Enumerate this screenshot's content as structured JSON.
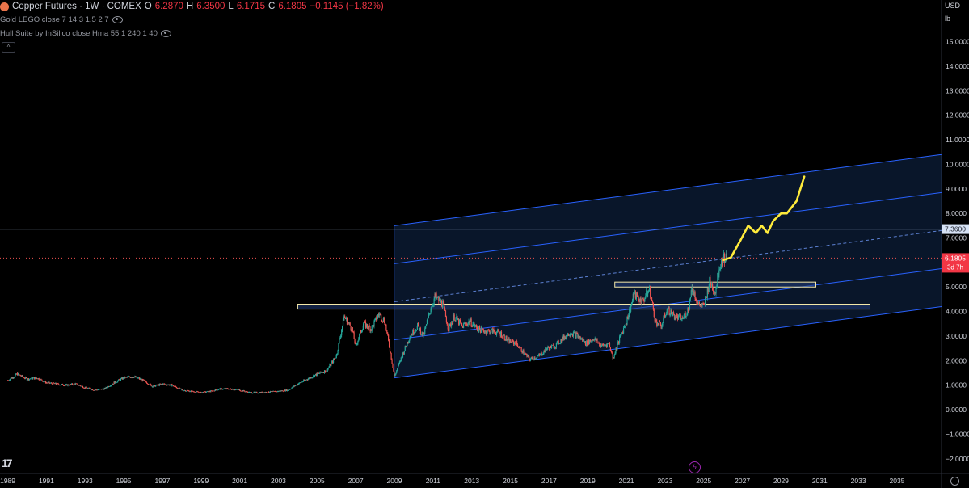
{
  "header": {
    "symbol": "Copper Futures · 1W · COMEX",
    "open_label": "O",
    "open": "6.2870",
    "high_label": "H",
    "high": "6.3500",
    "low_label": "L",
    "low": "6.1715",
    "close_label": "C",
    "close": "6.1805",
    "change": "−0.1145 (−1.82%)",
    "indicator1": "Gold LEGO close 7 14 3 1.5 2 7",
    "indicator2": "Hull Suite by InSilico close Hma 55 1 240 1 40"
  },
  "price_axis": {
    "currency": "USD",
    "unit": "lb"
  },
  "labels": {
    "h_line_price": "7.3600",
    "last_price": "6.1805",
    "countdown": "3d 7h"
  },
  "colors": {
    "background": "#000000",
    "up": "#26a69a",
    "down": "#ef5350",
    "channel": "#2962ff",
    "projection": "#ffeb3b",
    "zone": "#ffeb3b"
  },
  "icons": [
    "exchange-logo-icon",
    "eye-icon",
    "tradingview-logo-icon",
    "flash-icon",
    "settings-icon"
  ],
  "chart_data": {
    "type": "candlestick",
    "title": "Copper Futures · 1W · COMEX",
    "ylim": [
      -2.6,
      16.7
    ],
    "xlim": [
      1988.6,
      2037.3
    ],
    "y_ticks": [
      15,
      14,
      13,
      12,
      11,
      10,
      9,
      8,
      7,
      6,
      5,
      4,
      3,
      2,
      1,
      0,
      -1,
      -2
    ],
    "y_tick_labels": [
      "15.0000",
      "14.0000",
      "13.0000",
      "12.0000",
      "11.0000",
      "10.0000",
      "9.0000",
      "8.0000",
      "7.0000",
      "6.0000",
      "5.0000",
      "4.0000",
      "3.0000",
      "2.0000",
      "1.0000",
      "0.0000",
      "−1.0000",
      "−2.0000"
    ],
    "x_ticks": [
      1989,
      1991,
      1993,
      1995,
      1997,
      1999,
      2001,
      2003,
      2005,
      2007,
      2009,
      2011,
      2013,
      2015,
      2017,
      2019,
      2021,
      2023,
      2025,
      2027,
      2029,
      2031,
      2033,
      2035
    ],
    "x_tick_labels": [
      "1989",
      "1991",
      "1993",
      "1995",
      "1997",
      "1999",
      "2001",
      "2003",
      "2005",
      "2007",
      "2009",
      "2011",
      "2013",
      "2015",
      "2017",
      "2019",
      "2021",
      "2023",
      "2025",
      "2027",
      "2029",
      "2031",
      "2033",
      "2035"
    ],
    "price_path": [
      [
        1989.0,
        1.2
      ],
      [
        1989.5,
        1.45
      ],
      [
        1990.0,
        1.25
      ],
      [
        1990.5,
        1.3
      ],
      [
        1991.0,
        1.1
      ],
      [
        1991.5,
        1.05
      ],
      [
        1992.0,
        1.0
      ],
      [
        1992.5,
        1.05
      ],
      [
        1993.0,
        0.9
      ],
      [
        1993.5,
        0.8
      ],
      [
        1994.0,
        0.85
      ],
      [
        1994.5,
        1.1
      ],
      [
        1995.0,
        1.3
      ],
      [
        1995.5,
        1.35
      ],
      [
        1996.0,
        1.2
      ],
      [
        1996.5,
        0.95
      ],
      [
        1997.0,
        1.05
      ],
      [
        1997.5,
        1.0
      ],
      [
        1998.0,
        0.8
      ],
      [
        1998.5,
        0.75
      ],
      [
        1999.0,
        0.7
      ],
      [
        1999.5,
        0.75
      ],
      [
        2000.0,
        0.85
      ],
      [
        2000.5,
        0.85
      ],
      [
        2001.0,
        0.8
      ],
      [
        2001.5,
        0.7
      ],
      [
        2002.0,
        0.7
      ],
      [
        2002.5,
        0.72
      ],
      [
        2003.0,
        0.75
      ],
      [
        2003.5,
        0.8
      ],
      [
        2004.0,
        1.05
      ],
      [
        2004.5,
        1.25
      ],
      [
        2005.0,
        1.45
      ],
      [
        2005.5,
        1.6
      ],
      [
        2006.0,
        2.2
      ],
      [
        2006.4,
        3.8
      ],
      [
        2006.8,
        3.3
      ],
      [
        2007.0,
        2.6
      ],
      [
        2007.4,
        3.5
      ],
      [
        2007.8,
        3.3
      ],
      [
        2008.2,
        3.9
      ],
      [
        2008.5,
        3.6
      ],
      [
        2008.8,
        2.3
      ],
      [
        2009.0,
        1.35
      ],
      [
        2009.4,
        2.2
      ],
      [
        2009.8,
        3.0
      ],
      [
        2010.2,
        3.4
      ],
      [
        2010.5,
        3.0
      ],
      [
        2010.9,
        4.2
      ],
      [
        2011.1,
        4.6
      ],
      [
        2011.5,
        4.3
      ],
      [
        2011.8,
        3.3
      ],
      [
        2012.1,
        3.8
      ],
      [
        2012.5,
        3.4
      ],
      [
        2012.9,
        3.6
      ],
      [
        2013.3,
        3.3
      ],
      [
        2013.7,
        3.2
      ],
      [
        2014.1,
        3.2
      ],
      [
        2014.5,
        3.1
      ],
      [
        2014.9,
        2.8
      ],
      [
        2015.3,
        2.7
      ],
      [
        2015.7,
        2.3
      ],
      [
        2016.0,
        2.05
      ],
      [
        2016.5,
        2.2
      ],
      [
        2016.9,
        2.5
      ],
      [
        2017.3,
        2.6
      ],
      [
        2017.7,
        2.9
      ],
      [
        2018.1,
        3.15
      ],
      [
        2018.5,
        3.0
      ],
      [
        2018.9,
        2.7
      ],
      [
        2019.3,
        2.9
      ],
      [
        2019.7,
        2.6
      ],
      [
        2020.1,
        2.7
      ],
      [
        2020.3,
        2.1
      ],
      [
        2020.7,
        3.0
      ],
      [
        2021.0,
        3.6
      ],
      [
        2021.4,
        4.7
      ],
      [
        2021.8,
        4.4
      ],
      [
        2022.2,
        4.9
      ],
      [
        2022.5,
        3.6
      ],
      [
        2022.8,
        3.4
      ],
      [
        2023.1,
        4.1
      ],
      [
        2023.5,
        3.8
      ],
      [
        2023.9,
        3.7
      ],
      [
        2024.2,
        4.1
      ],
      [
        2024.4,
        5.0
      ],
      [
        2024.7,
        4.3
      ],
      [
        2025.0,
        4.2
      ],
      [
        2025.3,
        5.2
      ],
      [
        2025.6,
        4.8
      ],
      [
        2025.8,
        5.8
      ],
      [
        2026.0,
        6.2
      ],
      [
        2026.2,
        6.18
      ]
    ],
    "regression_channel": {
      "start": [
        2009.0,
        1.3
      ],
      "end": [
        2037.3,
        4.2
      ],
      "upper_offset": 6.2,
      "mid_offset": 3.1
    },
    "horizontal_lines": [
      7.36
    ],
    "zones": [
      {
        "x": [
          2004.0,
          2033.6
        ],
        "y": [
          4.1,
          4.3
        ]
      },
      {
        "x": [
          2020.4,
          2030.8
        ],
        "y": [
          5.0,
          5.2
        ]
      }
    ],
    "projection": [
      [
        2026.0,
        6.1
      ],
      [
        2026.4,
        6.2
      ],
      [
        2026.9,
        6.9
      ],
      [
        2027.3,
        7.5
      ],
      [
        2027.7,
        7.2
      ],
      [
        2028.0,
        7.5
      ],
      [
        2028.3,
        7.2
      ],
      [
        2028.6,
        7.7
      ],
      [
        2029.0,
        8.0
      ],
      [
        2029.3,
        8.0
      ],
      [
        2029.8,
        8.5
      ],
      [
        2030.2,
        9.5
      ]
    ]
  }
}
